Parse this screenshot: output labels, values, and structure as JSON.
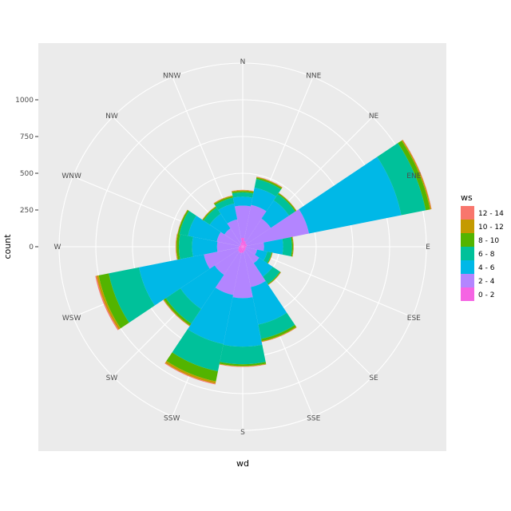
{
  "chart_data": {
    "type": "bar",
    "coord": "polar",
    "xlabel": "wd",
    "ylabel": "count",
    "ylim": [
      0,
      1250
    ],
    "y_ticks": [
      0,
      250,
      500,
      750,
      1000
    ],
    "categories": [
      "N",
      "NNE",
      "NE",
      "ENE",
      "E",
      "ESE",
      "SE",
      "SSE",
      "S",
      "SSW",
      "SW",
      "WSW",
      "W",
      "WNW",
      "NW",
      "NNW"
    ],
    "legend": {
      "title": "ws",
      "position": "right"
    },
    "series": [
      {
        "name": "0 - 2",
        "color": "#F564E3",
        "values": [
          60,
          40,
          30,
          30,
          25,
          20,
          25,
          30,
          40,
          45,
          40,
          30,
          25,
          20,
          20,
          30
        ]
      },
      {
        "name": "2 - 4",
        "color": "#B385FF",
        "values": [
          220,
          250,
          200,
          430,
          120,
          80,
          110,
          250,
          310,
          290,
          190,
          240,
          150,
          160,
          130,
          160
        ]
      },
      {
        "name": "4 - 6",
        "color": "#00B8E7",
        "values": [
          60,
          120,
          150,
          640,
          130,
          70,
          110,
          260,
          330,
          340,
          280,
          450,
          170,
          200,
          120,
          110
        ]
      },
      {
        "name": "6 - 8",
        "color": "#00C19A",
        "values": [
          30,
          60,
          50,
          170,
          60,
          30,
          60,
          100,
          120,
          190,
          120,
          210,
          90,
          60,
          50,
          40
        ]
      },
      {
        "name": "8 - 10",
        "color": "#53B400",
        "values": [
          10,
          10,
          8,
          30,
          8,
          5,
          5,
          15,
          12,
          70,
          15,
          70,
          15,
          10,
          8,
          10
        ]
      },
      {
        "name": "10 - 12",
        "color": "#C49A00",
        "values": [
          5,
          5,
          3,
          8,
          3,
          2,
          3,
          5,
          4,
          15,
          5,
          15,
          5,
          3,
          3,
          5
        ]
      },
      {
        "name": "12 - 14",
        "color": "#F8766D",
        "values": [
          2,
          2,
          1,
          3,
          1,
          1,
          1,
          2,
          2,
          6,
          2,
          8,
          2,
          1,
          1,
          2
        ]
      }
    ]
  }
}
